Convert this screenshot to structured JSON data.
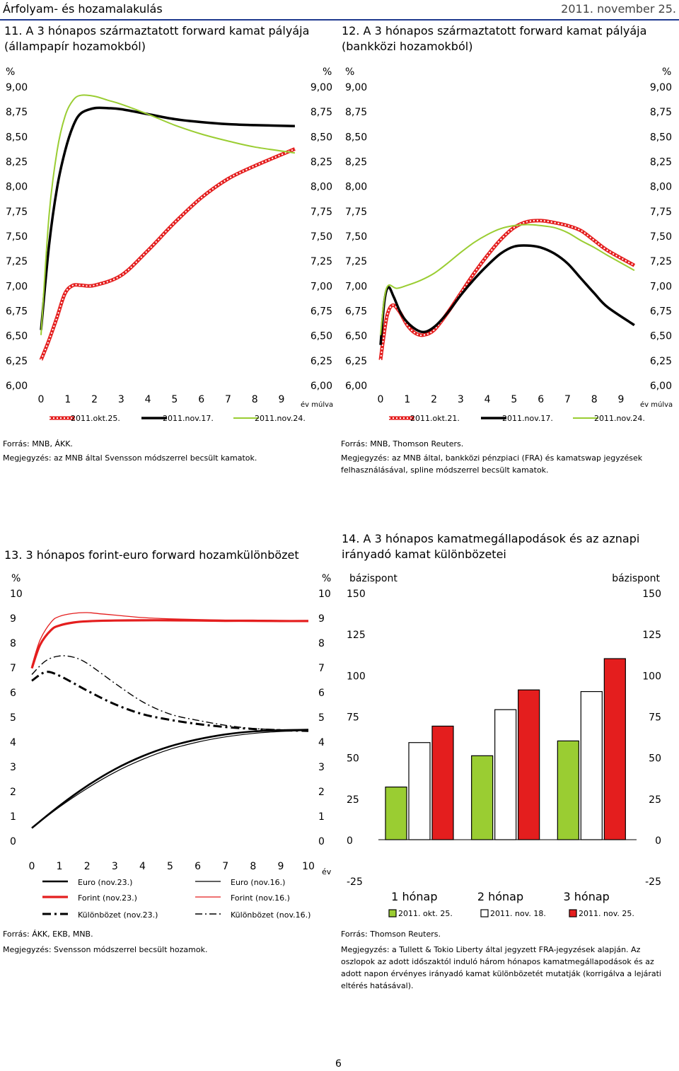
{
  "header": {
    "left": "Árfolyam- és hozamalakulás",
    "right": "2011. november 25.",
    "page_number": "6"
  },
  "colors": {
    "green": "#9ACD32",
    "black": "#000000",
    "red": "#E41E1E",
    "header_line": "#1F3A8F"
  },
  "chart_data": [
    {
      "id": "c11",
      "type": "line",
      "title": "11. A 3 hónapos származtatott forward kamat pályája (állampapír hozamokból)",
      "ylabel_left": "%",
      "ylabel_right": "%",
      "xlabel": "év múlva",
      "ylim": [
        6.0,
        9.0
      ],
      "yticks": [
        "9,00",
        "8,75",
        "8,50",
        "8,25",
        "8,00",
        "7,75",
        "7,50",
        "7,25",
        "7,00",
        "6,75",
        "6,50",
        "6,25",
        "6,00"
      ],
      "xticks": [
        "0",
        "1",
        "2",
        "3",
        "4",
        "5",
        "6",
        "7",
        "8",
        "9"
      ],
      "series": [
        {
          "name": "2011.okt.25.",
          "style": "red-dotted",
          "x": [
            0,
            0.3,
            0.6,
            0.9,
            1.2,
            1.5,
            2,
            3,
            4,
            5,
            6,
            7,
            8,
            9.5
          ],
          "y": [
            6.25,
            6.45,
            6.68,
            6.92,
            7.0,
            7.0,
            7.0,
            7.1,
            7.35,
            7.63,
            7.88,
            8.07,
            8.2,
            8.37
          ]
        },
        {
          "name": "2011.nov.17.",
          "style": "black",
          "x": [
            0,
            0.3,
            0.6,
            0.9,
            1.2,
            1.5,
            2,
            2.5,
            3,
            4,
            5,
            6,
            7,
            8,
            9.5
          ],
          "y": [
            6.55,
            7.4,
            7.98,
            8.35,
            8.6,
            8.73,
            8.78,
            8.78,
            8.77,
            8.72,
            8.67,
            8.64,
            8.62,
            8.61,
            8.6
          ]
        },
        {
          "name": "2011.nov.24.",
          "style": "green",
          "x": [
            0,
            0.3,
            0.6,
            0.9,
            1.2,
            1.5,
            2,
            2.5,
            3,
            4,
            5,
            6,
            7,
            8,
            9.5
          ],
          "y": [
            6.5,
            7.7,
            8.35,
            8.7,
            8.86,
            8.91,
            8.9,
            8.86,
            8.82,
            8.72,
            8.61,
            8.52,
            8.45,
            8.39,
            8.33
          ]
        }
      ],
      "legend": [
        "2011.okt.25.",
        "2011.nov.17.",
        "2011.nov.24."
      ]
    },
    {
      "id": "c12",
      "type": "line",
      "title": "12. A 3 hónapos származtatott forward kamat pályája (bankközi hozamokból)",
      "ylabel_left": "%",
      "ylabel_right": "%",
      "xlabel": "év múlva",
      "ylim": [
        6.0,
        9.0
      ],
      "yticks": [
        "9,00",
        "8,75",
        "8,50",
        "8,25",
        "8,00",
        "7,75",
        "7,50",
        "7,25",
        "7,00",
        "6,75",
        "6,50",
        "6,25",
        "6,00"
      ],
      "xticks": [
        "0",
        "1",
        "2",
        "3",
        "4",
        "5",
        "6",
        "7",
        "8",
        "9"
      ],
      "series": [
        {
          "name": "2011.okt.21.",
          "style": "red-dotted",
          "x": [
            0,
            0.1,
            0.25,
            0.45,
            0.7,
            1,
            1.3,
            1.6,
            2,
            2.5,
            3,
            3.5,
            4,
            4.5,
            5,
            5.5,
            6,
            6.5,
            7,
            7.5,
            8,
            8.5,
            9.5
          ],
          "y": [
            6.25,
            6.45,
            6.7,
            6.8,
            6.74,
            6.6,
            6.52,
            6.5,
            6.55,
            6.72,
            6.92,
            7.12,
            7.3,
            7.46,
            7.58,
            7.64,
            7.65,
            7.63,
            7.6,
            7.55,
            7.45,
            7.35,
            7.2
          ]
        },
        {
          "name": "2011.nov.17.",
          "style": "black",
          "x": [
            0,
            0.15,
            0.3,
            0.5,
            0.8,
            1.2,
            1.6,
            2,
            2.5,
            3,
            3.5,
            4,
            4.5,
            5,
            5.5,
            6,
            6.5,
            7,
            7.5,
            8,
            8.5,
            9.5
          ],
          "y": [
            6.4,
            6.85,
            6.98,
            6.88,
            6.7,
            6.58,
            6.53,
            6.58,
            6.72,
            6.9,
            7.06,
            7.2,
            7.32,
            7.39,
            7.4,
            7.38,
            7.32,
            7.22,
            7.07,
            6.92,
            6.78,
            6.6
          ]
        },
        {
          "name": "2011.nov.24.",
          "style": "green",
          "x": [
            0,
            0.15,
            0.3,
            0.6,
            1,
            1.5,
            2,
            2.5,
            3,
            3.5,
            4,
            4.5,
            5,
            5.5,
            6,
            6.5,
            7,
            7.5,
            8,
            8.5,
            9.5
          ],
          "y": [
            6.5,
            6.88,
            7.0,
            6.97,
            7.0,
            7.05,
            7.12,
            7.22,
            7.33,
            7.43,
            7.51,
            7.57,
            7.6,
            7.61,
            7.6,
            7.58,
            7.53,
            7.45,
            7.38,
            7.3,
            7.15
          ]
        }
      ],
      "legend": [
        "2011.okt.21.",
        "2011.nov.17.",
        "2011.nov.24."
      ]
    },
    {
      "id": "c13",
      "type": "line",
      "title": "13. 3 hónapos forint-euro forward hozamkülönbözet",
      "ylabel_left": "%",
      "ylabel_right": "%",
      "xlabel": "év",
      "ylim": [
        0,
        10
      ],
      "yticks": [
        "10",
        "9",
        "8",
        "7",
        "6",
        "5",
        "4",
        "3",
        "2",
        "1",
        "0"
      ],
      "xticks": [
        "0",
        "1",
        "2",
        "3",
        "4",
        "5",
        "6",
        "7",
        "8",
        "9",
        "10"
      ],
      "series": [
        {
          "name": "Euro (nov.23.)",
          "style": "black-thick",
          "x": [
            0,
            1,
            2,
            3,
            4,
            5,
            6,
            7,
            8,
            9,
            10
          ],
          "y": [
            0.5,
            1.4,
            2.2,
            2.87,
            3.4,
            3.8,
            4.08,
            4.28,
            4.4,
            4.45,
            4.47
          ]
        },
        {
          "name": "Euro (nov.16.)",
          "style": "black-thin",
          "x": [
            0,
            1,
            2,
            3,
            4,
            5,
            6,
            7,
            8,
            9,
            10
          ],
          "y": [
            0.5,
            1.35,
            2.1,
            2.75,
            3.27,
            3.68,
            3.97,
            4.18,
            4.32,
            4.4,
            4.44
          ]
        },
        {
          "name": "Forint (nov.23.)",
          "style": "red-thick",
          "x": [
            0,
            0.3,
            0.7,
            1,
            1.5,
            2,
            3,
            4,
            5,
            6,
            7,
            8,
            9,
            10
          ],
          "y": [
            6.95,
            7.9,
            8.5,
            8.68,
            8.8,
            8.85,
            8.88,
            8.89,
            8.89,
            8.88,
            8.87,
            8.87,
            8.86,
            8.86
          ]
        },
        {
          "name": "Forint (nov.16.)",
          "style": "red-thin",
          "x": [
            0,
            0.3,
            0.7,
            1,
            1.5,
            2,
            2.5,
            3,
            4,
            5,
            6,
            7,
            8,
            9,
            10
          ],
          "y": [
            7.05,
            8.1,
            8.82,
            9.05,
            9.17,
            9.2,
            9.15,
            9.1,
            9.0,
            8.95,
            8.92,
            8.9,
            8.9,
            8.88,
            8.87
          ]
        },
        {
          "name": "Különbözet (nov.23.)",
          "style": "black-dashdot-thick",
          "x": [
            0,
            0.5,
            1,
            2,
            3,
            4,
            5,
            6,
            7,
            8,
            9,
            10
          ],
          "y": [
            6.45,
            6.8,
            6.65,
            6.05,
            5.5,
            5.1,
            4.87,
            4.7,
            4.58,
            4.5,
            4.45,
            4.42
          ]
        },
        {
          "name": "Különbözet (nov.16.)",
          "style": "black-dashdot-thin",
          "x": [
            0,
            0.5,
            1,
            1.5,
            2,
            3,
            4,
            5,
            6,
            7,
            8,
            9,
            10
          ],
          "y": [
            6.7,
            7.25,
            7.45,
            7.4,
            7.15,
            6.35,
            5.6,
            5.1,
            4.85,
            4.65,
            4.52,
            4.47,
            4.43
          ]
        }
      ],
      "legend": [
        "Euro (nov.23.)",
        "Euro (nov.16.)",
        "Forint (nov.23.)",
        "Forint (nov.16.)",
        "Különbözet (nov.23.)",
        "Különbözet (nov.16.)"
      ]
    },
    {
      "id": "c14",
      "type": "bar",
      "title": "14. A 3 hónapos kamatmegállapodások és az aznapi irányadó kamat különbözetei",
      "ylabel_left": "bázispont",
      "ylabel_right": "bázispont",
      "ylim": [
        -25,
        150
      ],
      "yticks": [
        "150",
        "125",
        "100",
        "75",
        "50",
        "25",
        "0",
        "-25"
      ],
      "categories": [
        "1 hónap",
        "2 hónap",
        "3 hónap"
      ],
      "series": [
        {
          "name": "2011. okt. 25.",
          "color": "#9ACD32",
          "values": [
            32,
            51,
            60
          ]
        },
        {
          "name": "2011. nov. 18.",
          "color": "#FFFFFF",
          "values": [
            59,
            79,
            90
          ]
        },
        {
          "name": "2011. nov. 25.",
          "color": "#E41E1E",
          "values": [
            69,
            91,
            110
          ]
        }
      ],
      "legend": [
        "2011. okt. 25.",
        "2011. nov. 18.",
        "2011. nov. 25."
      ]
    }
  ],
  "notes": {
    "c11_source": "Forrás: MNB, ÁKK.",
    "c11_note": "Megjegyzés: az MNB által Svensson módszerrel becsült kamatok.",
    "c12_source": "Forrás: MNB, Thomson Reuters.",
    "c12_note": "Megjegyzés: az MNB által, bankközi pénzpiaci (FRA) és kamatswap jegyzések felhasználásával, spline módszerrel becsült kamatok.",
    "c13_source": "Forrás: ÁKK, EKB, MNB.",
    "c13_note": "Megjegyzés: Svensson módszerrel becsült hozamok.",
    "c14_source": "Forrás: Thomson Reuters.",
    "c14_note": "Megjegyzés: a Tullett & Tokio Liberty által jegyzett FRA-jegyzések alapján. Az oszlopok az adott időszaktól induló három hónapos kamatmegállapodások és az adott napon érvényes irányadó kamat különbözetét mutatják (korrigálva a lejárati eltérés hatásával)."
  }
}
